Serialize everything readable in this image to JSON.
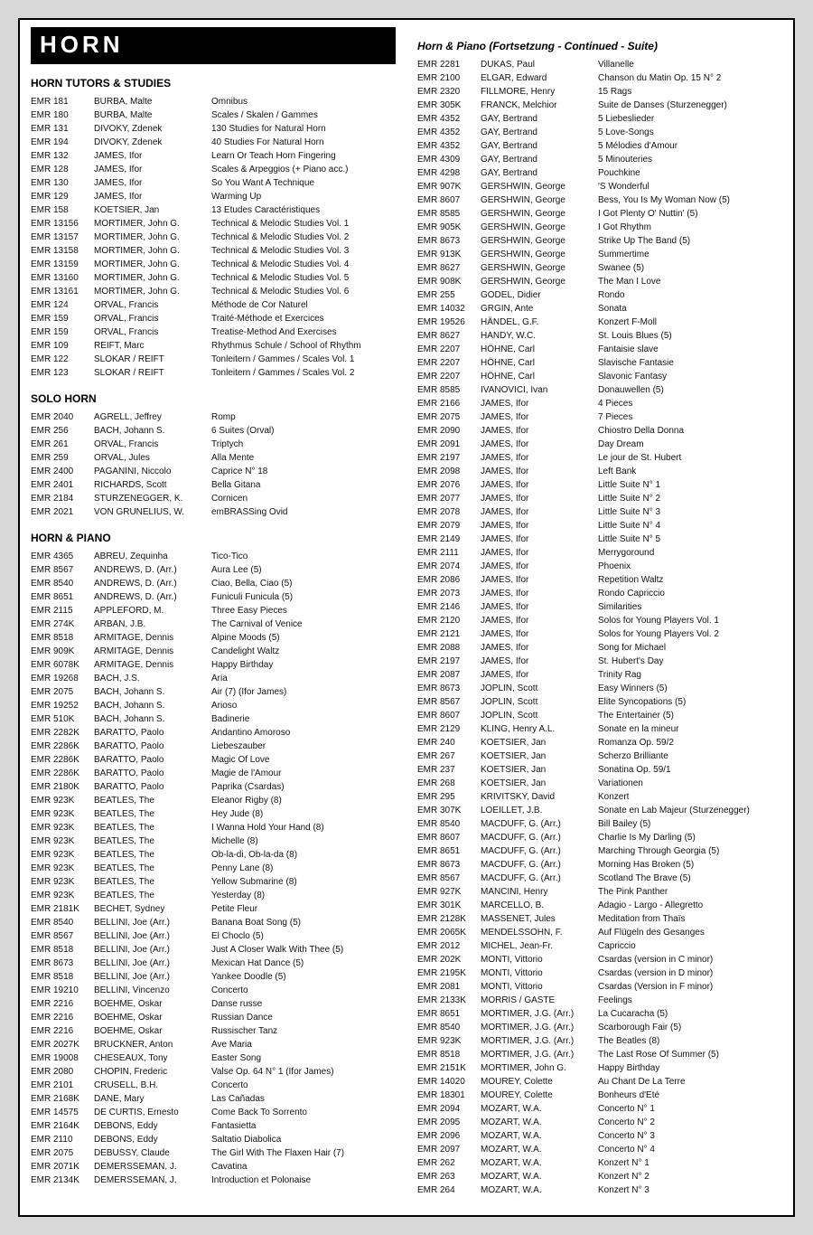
{
  "title": "HORN",
  "left": {
    "sections": [
      {
        "head": "HORN TUTORS & STUDIES",
        "rows": [
          [
            "EMR 181",
            "BURBA, Malte",
            "Omnibus"
          ],
          [
            "EMR 180",
            "BURBA, Malte",
            "Scales / Skalen / Gammes"
          ],
          [
            "EMR 131",
            "DIVOKY, Zdenek",
            "130 Studies for Natural Horn"
          ],
          [
            "EMR 194",
            "DIVOKY, Zdenek",
            "40 Studies For Natural Horn"
          ],
          [
            "EMR 132",
            "JAMES, Ifor",
            "Learn Or Teach Horn Fingering"
          ],
          [
            "EMR 128",
            "JAMES, Ifor",
            "Scales & Arpeggios (+ Piano acc.)"
          ],
          [
            "EMR 130",
            "JAMES, Ifor",
            "So You Want A Technique"
          ],
          [
            "EMR 129",
            "JAMES, Ifor",
            "Warming Up"
          ],
          [
            "EMR 158",
            "KOETSIER, Jan",
            "13 Etudes Caractéristiques"
          ],
          [
            "EMR 13156",
            "MORTIMER, John G.",
            "Technical & Melodic Studies Vol. 1"
          ],
          [
            "EMR 13157",
            "MORTIMER, John G.",
            "Technical & Melodic Studies Vol. 2"
          ],
          [
            "EMR 13158",
            "MORTIMER, John G.",
            "Technical & Melodic Studies Vol. 3"
          ],
          [
            "EMR 13159",
            "MORTIMER, John G.",
            "Technical & Melodic Studies Vol. 4"
          ],
          [
            "EMR 13160",
            "MORTIMER, John G.",
            "Technical & Melodic Studies Vol. 5"
          ],
          [
            "EMR 13161",
            "MORTIMER, John G.",
            "Technical & Melodic Studies Vol. 6"
          ],
          [
            "EMR 124",
            "ORVAL, Francis",
            "Méthode de Cor Naturel"
          ],
          [
            "EMR 159",
            "ORVAL, Francis",
            "Traité-Méthode et Exercices"
          ],
          [
            "EMR 159",
            "ORVAL, Francis",
            "Treatise-Method And Exercises"
          ],
          [
            "EMR 109",
            "REIFT, Marc",
            "Rhythmus Schule / School of Rhythm"
          ],
          [
            "EMR 122",
            "SLOKAR / REIFT",
            "Tonleitern / Gammes / Scales Vol. 1"
          ],
          [
            "EMR 123",
            "SLOKAR / REIFT",
            "Tonleitern / Gammes / Scales Vol. 2"
          ]
        ]
      },
      {
        "head": "SOLO HORN",
        "rows": [
          [
            "EMR 2040",
            "AGRELL, Jeffrey",
            "Romp"
          ],
          [
            "EMR 256",
            "BACH, Johann S.",
            "6 Suites (Orval)"
          ],
          [
            "EMR 261",
            "ORVAL, Francis",
            "Triptych"
          ],
          [
            "EMR 259",
            "ORVAL, Jules",
            "Alla Mente"
          ],
          [
            "EMR 2400",
            "PAGANINI, Niccolo",
            "Caprice N° 18"
          ],
          [
            "EMR 2401",
            "RICHARDS, Scott",
            "Bella Gitana"
          ],
          [
            "EMR 2184",
            "STURZENEGGER, K.",
            "Cornicen"
          ],
          [
            "EMR 2021",
            "VON GRUNELIUS, W.",
            "emBRASSing Ovid"
          ]
        ]
      },
      {
        "head": "HORN & PIANO",
        "rows": [
          [
            "EMR 4365",
            "ABREU, Zequinha",
            "Tico-Tico"
          ],
          [
            "EMR 8567",
            "ANDREWS, D. (Arr.)",
            "Aura Lee (5)"
          ],
          [
            "EMR 8540",
            "ANDREWS, D. (Arr.)",
            "Ciao, Bella, Ciao (5)"
          ],
          [
            "EMR 8651",
            "ANDREWS, D. (Arr.)",
            "Funiculi Funicula (5)"
          ],
          [
            "EMR 2115",
            "APPLEFORD, M.",
            "Three Easy Pieces"
          ],
          [
            "EMR 274K",
            "ARBAN, J.B.",
            "The Carnival of Venice"
          ],
          [
            "EMR 8518",
            "ARMITAGE, Dennis",
            "Alpine Moods (5)"
          ],
          [
            "EMR 909K",
            "ARMITAGE, Dennis",
            "Candelight Waltz"
          ],
          [
            "EMR 6078K",
            "ARMITAGE, Dennis",
            "Happy Birthday"
          ],
          [
            "EMR 19268",
            "BACH, J.S.",
            "Aria"
          ],
          [
            "EMR 2075",
            "BACH, Johann S.",
            "Air (7) (Ifor James)"
          ],
          [
            "EMR 19252",
            "BACH, Johann S.",
            "Arioso"
          ],
          [
            "EMR 510K",
            "BACH, Johann S.",
            "Badinerie"
          ],
          [
            "EMR 2282K",
            "BARATTO, Paolo",
            "Andantino Amoroso"
          ],
          [
            "EMR 2286K",
            "BARATTO, Paolo",
            "Liebeszauber"
          ],
          [
            "EMR 2286K",
            "BARATTO, Paolo",
            "Magic Of Love"
          ],
          [
            "EMR 2286K",
            "BARATTO, Paolo",
            "Magie de l'Amour"
          ],
          [
            "EMR 2180K",
            "BARATTO, Paolo",
            "Paprika (Csardas)"
          ],
          [
            "EMR 923K",
            "BEATLES, The",
            "Eleanor Rigby (8)"
          ],
          [
            "EMR 923K",
            "BEATLES, The",
            "Hey Jude (8)"
          ],
          [
            "EMR 923K",
            "BEATLES, The",
            "I Wanna Hold Your Hand (8)"
          ],
          [
            "EMR 923K",
            "BEATLES, The",
            "Michelle (8)"
          ],
          [
            "EMR 923K",
            "BEATLES, The",
            "Ob-la-di, Ob-la-da (8)"
          ],
          [
            "EMR 923K",
            "BEATLES, The",
            "Penny Lane (8)"
          ],
          [
            "EMR 923K",
            "BEATLES, The",
            "Yellow Submarine (8)"
          ],
          [
            "EMR 923K",
            "BEATLES, The",
            "Yesterday (8)"
          ],
          [
            "EMR 2181K",
            "BECHET, Sydney",
            "Petite Fleur"
          ],
          [
            "EMR 8540",
            "BELLINI, Joe (Arr.)",
            "Banana Boat Song (5)"
          ],
          [
            "EMR 8567",
            "BELLINI, Joe (Arr.)",
            "El Choclo (5)"
          ],
          [
            "EMR 8518",
            "BELLINI, Joe (Arr.)",
            "Just A Closer Walk With Thee (5)"
          ],
          [
            "EMR 8673",
            "BELLINI, Joe (Arr.)",
            "Mexican Hat Dance (5)"
          ],
          [
            "EMR 8518",
            "BELLINI, Joe (Arr.)",
            "Yankee Doodle (5)"
          ],
          [
            "EMR 19210",
            "BELLINI, Vincenzo",
            "Concerto"
          ],
          [
            "EMR 2216",
            "BOEHME, Oskar",
            "Danse russe"
          ],
          [
            "EMR 2216",
            "BOEHME, Oskar",
            "Russian Dance"
          ],
          [
            "EMR 2216",
            "BOEHME, Oskar",
            "Russischer Tanz"
          ],
          [
            "EMR 2027K",
            "BRUCKNER, Anton",
            "Ave Maria"
          ],
          [
            "EMR 19008",
            "CHESEAUX, Tony",
            "Easter Song"
          ],
          [
            "EMR 2080",
            "CHOPIN, Frederic",
            "Valse Op. 64 N° 1 (Ifor James)"
          ],
          [
            "EMR 2101",
            "CRUSELL, B.H.",
            "Concerto"
          ],
          [
            "EMR 2168K",
            "DANE, Mary",
            "Las Cañadas"
          ],
          [
            "EMR 14575",
            "DE CURTIS, Ernesto",
            "Come Back To Sorrento"
          ],
          [
            "EMR 2164K",
            "DEBONS, Eddy",
            "Fantasietta"
          ],
          [
            "EMR 2110",
            "DEBONS, Eddy",
            "Saltatio Diabolica"
          ],
          [
            "EMR 2075",
            "DEBUSSY, Claude",
            "The Girl With The Flaxen Hair (7)"
          ],
          [
            "EMR 2071K",
            "DEMERSSEMAN, J.",
            "Cavatina"
          ],
          [
            "EMR 2134K",
            "DEMERSSEMAN, J.",
            "Introduction et Polonaise"
          ]
        ]
      }
    ]
  },
  "right": {
    "sections": [
      {
        "head": "Horn & Piano (Fortsetzung - Continued - Suite)",
        "italic": true,
        "rows": [
          [
            "EMR 2281",
            "DUKAS, Paul",
            "Villanelle"
          ],
          [
            "EMR 2100",
            "ELGAR, Edward",
            "Chanson du Matin Op. 15 N° 2"
          ],
          [
            "EMR 2320",
            "FILLMORE, Henry",
            "15 Rags"
          ],
          [
            "EMR 305K",
            "FRANCK, Melchior",
            "Suite de Danses (Sturzenegger)"
          ],
          [
            "EMR 4352",
            "GAY, Bertrand",
            "5 Liebeslieder"
          ],
          [
            "EMR 4352",
            "GAY, Bertrand",
            "5 Love-Songs"
          ],
          [
            "EMR 4352",
            "GAY, Bertrand",
            "5 Mélodies d'Amour"
          ],
          [
            "EMR 4309",
            "GAY, Bertrand",
            "5 Minouteries"
          ],
          [
            "EMR 4298",
            "GAY, Bertrand",
            "Pouchkine"
          ],
          [
            "EMR 907K",
            "GERSHWIN, George",
            "'S Wonderful"
          ],
          [
            "EMR 8607",
            "GERSHWIN, George",
            "Bess, You Is My Woman Now (5)"
          ],
          [
            "EMR 8585",
            "GERSHWIN, George",
            "I Got Plenty O' Nuttin' (5)"
          ],
          [
            "EMR 905K",
            "GERSHWIN, George",
            "I Got Rhythm"
          ],
          [
            "EMR 8673",
            "GERSHWIN, George",
            "Strike Up The Band (5)"
          ],
          [
            "EMR 913K",
            "GERSHWIN, George",
            "Summertime"
          ],
          [
            "EMR 8627",
            "GERSHWIN, George",
            "Swanee (5)"
          ],
          [
            "EMR 908K",
            "GERSHWIN, George",
            "The Man I Love"
          ],
          [
            "EMR 255",
            "GODEL, Didier",
            "Rondo"
          ],
          [
            "EMR 14032",
            "GRGIN, Ante",
            "Sonata"
          ],
          [
            "EMR 19526",
            "HÄNDEL, G.F.",
            "Konzert F-Moll"
          ],
          [
            "EMR 8627",
            "HANDY, W.C.",
            "St. Louis Blues (5)"
          ],
          [
            "EMR 2207",
            "HÖHNE, Carl",
            "Fantaisie slave"
          ],
          [
            "EMR 2207",
            "HÖHNE, Carl",
            "Slavische Fantasie"
          ],
          [
            "EMR 2207",
            "HÖHNE, Carl",
            "Slavonic Fantasy"
          ],
          [
            "EMR 8585",
            "IVANOVICI, Ivan",
            "Donauwellen (5)"
          ],
          [
            "EMR 2166",
            "JAMES, Ifor",
            "4 Pieces"
          ],
          [
            "EMR 2075",
            "JAMES, Ifor",
            "7 Pieces"
          ],
          [
            "EMR 2090",
            "JAMES, Ifor",
            "Chiostro Della Donna"
          ],
          [
            "EMR 2091",
            "JAMES, Ifor",
            "Day Dream"
          ],
          [
            "EMR 2197",
            "JAMES, Ifor",
            "Le jour de St. Hubert"
          ],
          [
            "EMR 2098",
            "JAMES, Ifor",
            "Left Bank"
          ],
          [
            "EMR 2076",
            "JAMES, Ifor",
            "Little Suite N° 1"
          ],
          [
            "EMR 2077",
            "JAMES, Ifor",
            "Little Suite N° 2"
          ],
          [
            "EMR 2078",
            "JAMES, Ifor",
            "Little Suite N° 3"
          ],
          [
            "EMR 2079",
            "JAMES, Ifor",
            "Little Suite N° 4"
          ],
          [
            "EMR 2149",
            "JAMES, Ifor",
            "Little Suite N° 5"
          ],
          [
            "EMR 2111",
            "JAMES, Ifor",
            "Merrygoround"
          ],
          [
            "EMR 2074",
            "JAMES, Ifor",
            "Phoenix"
          ],
          [
            "EMR 2086",
            "JAMES, Ifor",
            "Repetition Waltz"
          ],
          [
            "EMR 2073",
            "JAMES, Ifor",
            "Rondo Capriccio"
          ],
          [
            "EMR 2146",
            "JAMES, Ifor",
            "Similarities"
          ],
          [
            "EMR 2120",
            "JAMES, Ifor",
            "Solos for Young Players Vol. 1"
          ],
          [
            "EMR 2121",
            "JAMES, Ifor",
            "Solos for Young Players Vol. 2"
          ],
          [
            "EMR 2088",
            "JAMES, Ifor",
            "Song for Michael"
          ],
          [
            "EMR 2197",
            "JAMES, Ifor",
            "St. Hubert's Day"
          ],
          [
            "EMR 2087",
            "JAMES, Ifor",
            "Trinity Rag"
          ],
          [
            "EMR 8673",
            "JOPLIN, Scott",
            "Easy Winners (5)"
          ],
          [
            "EMR 8567",
            "JOPLIN, Scott",
            "Elite Syncopations (5)"
          ],
          [
            "EMR 8607",
            "JOPLIN, Scott",
            "The Entertainer (5)"
          ],
          [
            "EMR 2129",
            "KLING, Henry A.L.",
            "Sonate en la mineur"
          ],
          [
            "EMR 240",
            "KOETSIER, Jan",
            "Romanza Op. 59/2"
          ],
          [
            "EMR 267",
            "KOETSIER, Jan",
            "Scherzo Brilliante"
          ],
          [
            "EMR 237",
            "KOETSIER, Jan",
            "Sonatina Op. 59/1"
          ],
          [
            "EMR 268",
            "KOETSIER, Jan",
            "Variationen"
          ],
          [
            "EMR 295",
            "KRIVITSKY, David",
            "Konzert"
          ],
          [
            "EMR 307K",
            "LOEILLET, J.B.",
            "Sonate en Lab Majeur (Sturzenegger)"
          ],
          [
            "EMR 8540",
            "MACDUFF, G. (Arr.)",
            "Bill Bailey (5)"
          ],
          [
            "EMR 8607",
            "MACDUFF, G. (Arr.)",
            "Charlie Is My Darling (5)"
          ],
          [
            "EMR 8651",
            "MACDUFF, G. (Arr.)",
            "Marching Through Georgia (5)"
          ],
          [
            "EMR 8673",
            "MACDUFF, G. (Arr.)",
            "Morning Has Broken (5)"
          ],
          [
            "EMR 8567",
            "MACDUFF, G. (Arr.)",
            "Scotland The Brave (5)"
          ],
          [
            "EMR 927K",
            "MANCINI, Henry",
            "The Pink Panther"
          ],
          [
            "EMR 301K",
            "MARCELLO, B.",
            "Adagio - Largo - Allegretto"
          ],
          [
            "EMR 2128K",
            "MASSENET, Jules",
            "Meditation from Thaïs"
          ],
          [
            "EMR 2065K",
            "MENDELSSOHN, F.",
            "Auf Flügeln des Gesanges"
          ],
          [
            "EMR 2012",
            "MICHEL, Jean-Fr.",
            "Capriccio"
          ],
          [
            "EMR 202K",
            "MONTI, Vittorio",
            "Csardas (version in C minor)"
          ],
          [
            "EMR 2195K",
            "MONTI, Vittorio",
            "Csardas (version in D minor)"
          ],
          [
            "EMR 2081",
            "MONTI, Vittorio",
            "Csardas (Version in F minor)"
          ],
          [
            "EMR 2133K",
            "MORRIS / GASTE",
            "Feelings"
          ],
          [
            "EMR 8651",
            "MORTIMER, J.G. (Arr.)",
            "La Cucaracha (5)"
          ],
          [
            "EMR 8540",
            "MORTIMER, J.G. (Arr.)",
            "Scarborough Fair (5)"
          ],
          [
            "EMR 923K",
            "MORTIMER, J.G. (Arr.)",
            "The Beatles (8)"
          ],
          [
            "EMR 8518",
            "MORTIMER, J.G. (Arr.)",
            "The Last Rose Of Summer (5)"
          ],
          [
            "EMR 2151K",
            "MORTIMER, John G.",
            "Happy Birthday"
          ],
          [
            "EMR 14020",
            "MOUREY, Colette",
            "Au Chant De La Terre"
          ],
          [
            "EMR 18301",
            "MOUREY, Colette",
            "Bonheurs d'Eté"
          ],
          [
            "EMR 2094",
            "MOZART, W.A.",
            "Concerto N° 1"
          ],
          [
            "EMR 2095",
            "MOZART, W.A.",
            "Concerto N° 2"
          ],
          [
            "EMR 2096",
            "MOZART, W.A.",
            "Concerto N° 3"
          ],
          [
            "EMR 2097",
            "MOZART, W.A.",
            "Concerto N° 4"
          ],
          [
            "EMR 262",
            "MOZART, W.A.",
            "Konzert N° 1"
          ],
          [
            "EMR 263",
            "MOZART, W.A.",
            "Konzert N° 2"
          ],
          [
            "EMR 264",
            "MOZART, W.A.",
            "Konzert N° 3"
          ]
        ]
      }
    ]
  }
}
